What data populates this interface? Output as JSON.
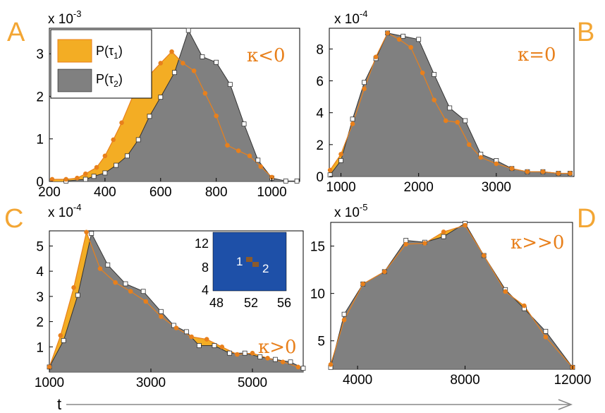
{
  "colors": {
    "tau1": "#F3AD24",
    "tau1_line": "#E8801C",
    "tau2": "#808080",
    "inset_bg": "#1E50A8",
    "inset_dot": "#8B5A2B",
    "letter": "#F3A634"
  },
  "time_axis": {
    "label": "t"
  },
  "chart_data": [
    {
      "type": "area",
      "panel": "A",
      "kappa": "κ<0",
      "xlim": [
        200,
        1100
      ],
      "ylim": [
        0,
        3.6
      ],
      "y_multiplier": "x 10",
      "y_exponent": "-3",
      "xticks": [
        "200",
        "400",
        "600",
        "800",
        "1000"
      ],
      "xtick_values": [
        200,
        400,
        600,
        800,
        1000
      ],
      "yticks": [
        "0",
        "1",
        "2",
        "3"
      ],
      "ytick_values": [
        0,
        1,
        2,
        3
      ],
      "legend": {
        "placement": "top-left",
        "entries": [
          {
            "label": "P(τ",
            "sub": "1",
            "close": ")",
            "series": "tau1"
          },
          {
            "label": "P(τ",
            "sub": "2",
            "close": ")",
            "series": "tau2"
          }
        ]
      },
      "series": [
        {
          "name": "P(τ1)",
          "key": "tau1",
          "x": [
            210,
            260,
            300,
            330,
            370,
            400,
            430,
            460,
            500,
            530,
            560,
            600,
            640,
            680,
            720,
            760,
            800,
            840,
            880,
            920,
            960,
            1000
          ],
          "values": [
            0.05,
            0.05,
            0.08,
            0.18,
            0.33,
            0.6,
            0.98,
            1.38,
            2.0,
            2.25,
            2.5,
            2.78,
            3.05,
            2.78,
            2.6,
            2.07,
            1.54,
            0.85,
            0.72,
            0.6,
            0.35,
            0.1
          ]
        },
        {
          "name": "P(τ2)",
          "key": "tau2",
          "x": [
            260,
            330,
            360,
            400,
            440,
            480,
            520,
            560,
            600,
            650,
            700,
            750,
            800,
            850,
            900,
            950,
            1000,
            1050,
            1090
          ],
          "values": [
            0.01,
            0.05,
            0.12,
            0.2,
            0.38,
            0.6,
            0.98,
            1.53,
            1.98,
            2.56,
            3.55,
            2.93,
            2.8,
            2.28,
            1.35,
            0.5,
            0.08,
            0.01,
            0.01
          ]
        }
      ]
    },
    {
      "type": "area",
      "panel": "B",
      "kappa": "κ=0",
      "xlim": [
        850,
        4000
      ],
      "ylim": [
        0,
        9.3
      ],
      "y_multiplier": "x 10",
      "y_exponent": "-4",
      "xticks": [
        "1000",
        "2000",
        "3000"
      ],
      "xtick_values": [
        1000,
        2000,
        3000
      ],
      "yticks": [
        "0",
        "2",
        "4",
        "6",
        "8"
      ],
      "ytick_values": [
        0,
        2,
        4,
        6,
        8
      ],
      "series": [
        {
          "name": "P(τ1)",
          "key": "tau1",
          "x": [
            860,
            1000,
            1150,
            1300,
            1450,
            1600,
            1750,
            1900,
            2050,
            2200,
            2350,
            2500,
            2650,
            2800,
            3000,
            3200,
            3400,
            3600,
            3800,
            3950
          ],
          "values": [
            0.4,
            1.4,
            3.3,
            5.5,
            7.5,
            9.0,
            8.6,
            8.1,
            6.5,
            4.8,
            3.5,
            3.4,
            2.0,
            1.2,
            0.8,
            0.5,
            0.3,
            0.3,
            0.2,
            0.2
          ]
        },
        {
          "name": "P(τ2)",
          "key": "tau2",
          "x": [
            860,
            1000,
            1150,
            1300,
            1450,
            1600,
            1800,
            2000,
            2200,
            2400,
            2600,
            2800,
            3000,
            3200,
            3400,
            3600,
            3800,
            3950
          ],
          "values": [
            0.1,
            1.0,
            3.6,
            5.9,
            7.4,
            9.0,
            8.8,
            8.6,
            6.4,
            4.3,
            3.5,
            1.4,
            1.0,
            0.5,
            0.3,
            0.3,
            0.2,
            0.2
          ]
        }
      ]
    },
    {
      "type": "area",
      "panel": "C",
      "kappa": "κ>0",
      "xlim": [
        1000,
        6000
      ],
      "ylim": [
        0,
        5.6
      ],
      "y_multiplier": "x 10",
      "y_exponent": "-4",
      "xticks": [
        "1000",
        "3000",
        "5000"
      ],
      "xtick_values": [
        1000,
        3000,
        5000
      ],
      "yticks": [
        "1",
        "2",
        "3",
        "4",
        "5"
      ],
      "ytick_values": [
        1,
        2,
        3,
        4,
        5
      ],
      "inset": {
        "xticks": [
          "48",
          "52",
          "56"
        ],
        "yticks": [
          "4",
          "8",
          "12"
        ],
        "labels": [
          "1",
          "2"
        ]
      },
      "series": [
        {
          "name": "P(τ1)",
          "key": "tau1",
          "x": [
            1000,
            1220,
            1480,
            1730,
            2000,
            2300,
            2600,
            2900,
            3200,
            3500,
            3800,
            4100,
            4400,
            4700,
            5000,
            5300,
            5600,
            5900
          ],
          "values": [
            0.2,
            1.45,
            3.35,
            5.55,
            4.1,
            3.55,
            3.2,
            2.8,
            2.2,
            1.75,
            1.4,
            1.3,
            1.0,
            0.7,
            0.75,
            0.55,
            0.4,
            0.2
          ]
        },
        {
          "name": "P(τ2)",
          "key": "tau2",
          "x": [
            1000,
            1280,
            1560,
            1830,
            2150,
            2500,
            2850,
            3200,
            3450,
            3700,
            3950,
            4250,
            4550,
            4850,
            5150,
            5450,
            5750,
            6000
          ],
          "values": [
            0.2,
            1.25,
            3.05,
            5.5,
            4.25,
            3.5,
            3.2,
            2.4,
            1.85,
            1.6,
            1.05,
            1.05,
            0.75,
            0.75,
            0.6,
            0.5,
            0.4,
            0.15
          ]
        }
      ]
    },
    {
      "type": "area",
      "panel": "D",
      "kappa": "κ>>0",
      "xlim": [
        3000,
        12000
      ],
      "ylim": [
        2,
        17.5
      ],
      "y_multiplier": "x 10",
      "y_exponent": "-5",
      "xticks": [
        "4000",
        "8000",
        "12000"
      ],
      "xtick_values": [
        4000,
        8000,
        12000
      ],
      "yticks": [
        "5",
        "10",
        "15"
      ],
      "ytick_values": [
        5,
        10,
        15
      ],
      "series": [
        {
          "name": "P(τ1)",
          "key": "tau1",
          "x": [
            3000,
            3500,
            4200,
            5000,
            5800,
            6500,
            7200,
            8000,
            8700,
            9500,
            10200,
            11000,
            12000
          ],
          "values": [
            2.5,
            7.2,
            11.0,
            12.3,
            15.2,
            15.3,
            16.5,
            17.2,
            14.0,
            10.2,
            8.7,
            5.4,
            2.2
          ]
        },
        {
          "name": "P(τ2)",
          "key": "tau2",
          "x": [
            3000,
            3500,
            4200,
            5000,
            5800,
            6500,
            7200,
            8000,
            8700,
            9500,
            10200,
            11000,
            12000
          ],
          "values": [
            2.2,
            7.8,
            11.0,
            12.3,
            15.6,
            15.4,
            16.0,
            17.4,
            14.0,
            10.4,
            8.4,
            6.0,
            2.2
          ]
        }
      ]
    }
  ]
}
